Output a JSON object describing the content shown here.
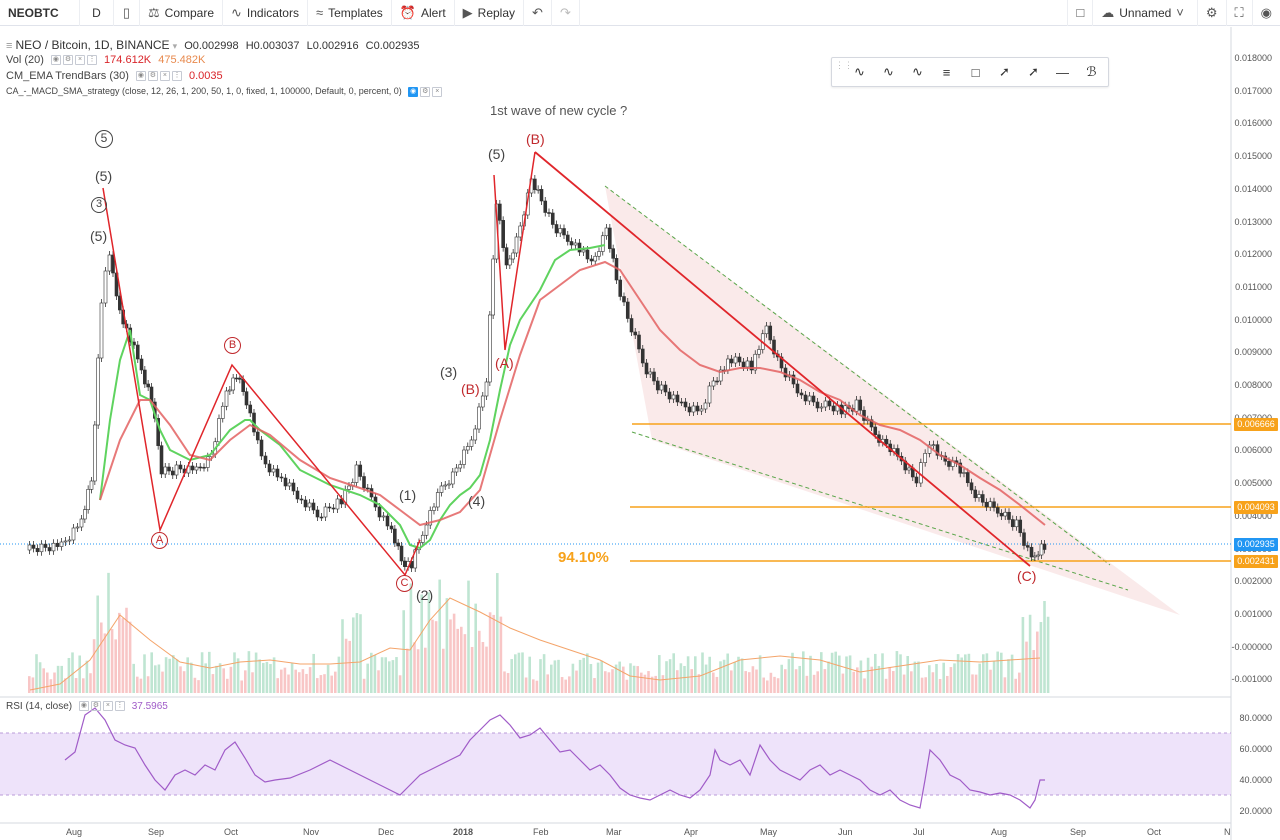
{
  "toolbar": {
    "symbol": "NEOBTC",
    "interval": "D",
    "compare": "Compare",
    "indicators": "Indicators",
    "templates": "Templates",
    "alert": "Alert",
    "replay": "Replay",
    "layout_name": "Unnamed"
  },
  "legend": {
    "main_title": "NEO / Bitcoin, 1D, BINANCE",
    "open": "O0.002998",
    "high": "H0.003037",
    "low": "L0.002916",
    "close": "C0.002935",
    "vol_label": "Vol (20)",
    "vol_1": "174.612K",
    "vol_2": "475.482K",
    "ema_label": "CM_EMA TrendBars (30)",
    "ema_value": "0.0035",
    "strategy_label": "CA_-_MACD_SMA_strategy (close, 12, 26, 1, 200, 50, 1, 0, fixed, 1, 100000, Default, 0, percent, 0)",
    "rsi_label": "RSI (14, close)",
    "rsi_value": "37.5965"
  },
  "annotations": {
    "cycle_note": "1st wave of new cycle ?",
    "percent": "94.10%",
    "wave_a1": "A",
    "wave_b1": "B",
    "wave_c1": "C",
    "wave_5_top": "(5)",
    "wave_b_top": "(B)",
    "wave_a_mid": "(A)",
    "wave_b_mid": "(B)",
    "wave_3": "(3)",
    "wave_1": "(1)",
    "wave_4": "(4)",
    "wave_2": "(2)",
    "wave_c_end": "(C)",
    "wave_5_circ": "5",
    "wave_5_paren": "(5)",
    "wave_3_circ": "3",
    "wave_5_paren2": "(5)"
  },
  "price_axis": [
    "0.018000",
    "0.017000",
    "0.016000",
    "0.015000",
    "0.014000",
    "0.013000",
    "0.012000",
    "0.011000",
    "0.010000",
    "0.009000",
    "0.008000",
    "0.007000",
    "0.006000",
    "0.005000",
    "0.004000",
    "0.003000",
    "0.002000",
    "0.001000",
    "-0.000000",
    "-0.001000"
  ],
  "price_tags": {
    "level_1": "0.006666",
    "level_2": "0.004093",
    "current": "0.002935",
    "level_3": "0.002431"
  },
  "rsi_axis": [
    "80.0000",
    "60.0000",
    "40.0000",
    "20.0000"
  ],
  "time_axis": [
    "Aug",
    "Sep",
    "Oct",
    "Nov",
    "Dec",
    "2018",
    "Feb",
    "Mar",
    "Apr",
    "May",
    "Jun",
    "Jul",
    "Aug",
    "Sep",
    "Oct",
    "N"
  ],
  "colors": {
    "orange": "#f7a21b",
    "red_line": "#e0262b",
    "green_ema": "#5fd35f",
    "blue_tag": "#2196f3",
    "rsi_band": "#ece0fa",
    "rsi_line": "#a05cc8"
  }
}
